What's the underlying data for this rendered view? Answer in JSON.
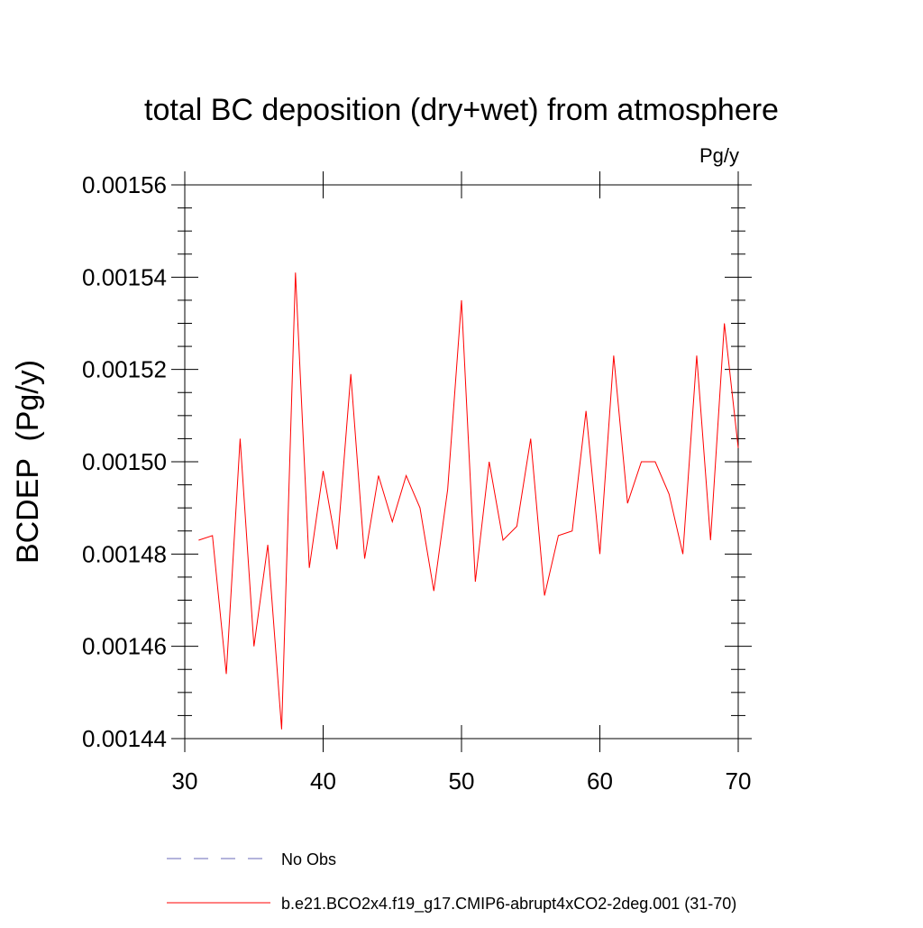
{
  "chart_data": {
    "type": "line",
    "title": "total BC deposition (dry+wet) from atmosphere",
    "units": "Pg/y",
    "xlabel": "",
    "ylabel": "BCDEP  (Pg/y)",
    "xlim": [
      30,
      70
    ],
    "ylim": [
      0.00144,
      0.00156
    ],
    "x_ticks": [
      "30",
      "40",
      "50",
      "60",
      "70"
    ],
    "y_ticks": [
      "0.00144",
      "0.00146",
      "0.00148",
      "0.00150",
      "0.00152",
      "0.00154",
      "0.00156"
    ],
    "grid": false,
    "legend_position": "bottom",
    "series": [
      {
        "name": "No Obs",
        "color": "#6a6ab8",
        "style": "dashed",
        "x": [],
        "values": []
      },
      {
        "name": "b.e21.BCO2x4.f19_g17.CMIP6-abrupt4xCO2-2deg.001 (31-70)",
        "color": "#ff0000",
        "style": "solid",
        "x": [
          31,
          32,
          33,
          34,
          35,
          36,
          37,
          38,
          39,
          40,
          41,
          42,
          43,
          44,
          45,
          46,
          47,
          48,
          49,
          50,
          51,
          52,
          53,
          54,
          55,
          56,
          57,
          58,
          59,
          60,
          61,
          62,
          63,
          64,
          65,
          66,
          67,
          68,
          69,
          70
        ],
        "values": [
          0.001483,
          0.001484,
          0.001454,
          0.001505,
          0.00146,
          0.001482,
          0.001442,
          0.001541,
          0.001477,
          0.001498,
          0.001481,
          0.001519,
          0.001479,
          0.001497,
          0.001487,
          0.001497,
          0.00149,
          0.001472,
          0.001494,
          0.001535,
          0.001474,
          0.0015,
          0.001483,
          0.001486,
          0.001505,
          0.001471,
          0.001484,
          0.001485,
          0.001511,
          0.00148,
          0.001523,
          0.001491,
          0.0015,
          0.0015,
          0.001493,
          0.00148,
          0.001523,
          0.001483,
          0.00153,
          0.001503
        ]
      }
    ]
  }
}
